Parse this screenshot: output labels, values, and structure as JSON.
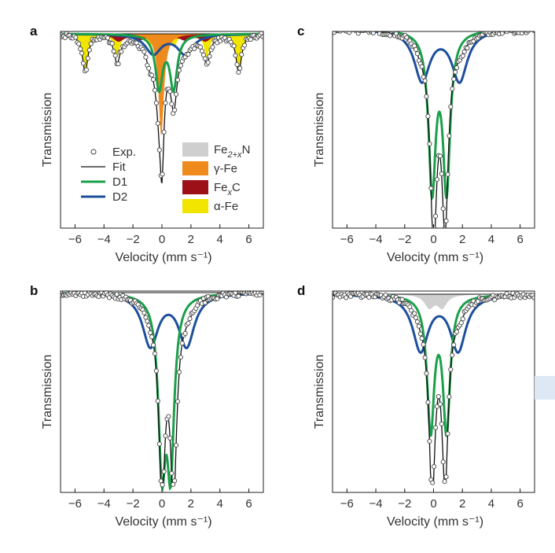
{
  "axes": {
    "xlabel": "Velocity (mm s⁻¹)",
    "ylabel": "Transmission",
    "xlim": [
      -7,
      7
    ],
    "xticks": [
      -6,
      -4,
      -2,
      0,
      2,
      4,
      6
    ]
  },
  "colors": {
    "D1": "#1aa04a",
    "D2": "#1d4f9c",
    "fit": "#111111",
    "exp": "#444444",
    "Fe2N": "#cfcfcf",
    "gammaFe": "#ef8a1c",
    "FexC": "#9e1017",
    "alphaFe": "#f2e600"
  },
  "legend_lines": [
    {
      "key": "exp",
      "label": "Exp."
    },
    {
      "key": "fit",
      "label": "Fit"
    },
    {
      "key": "D1",
      "label": "D1"
    },
    {
      "key": "D2",
      "label": "D2"
    }
  ],
  "legend_areas": [
    {
      "key": "Fe2N",
      "label": "Fe",
      "sub": "2+x",
      "tail": "N"
    },
    {
      "key": "gammaFe",
      "label": "γ-Fe",
      "sub": "",
      "tail": ""
    },
    {
      "key": "FexC",
      "label": "Fe",
      "sub": "x",
      "tail": "C"
    },
    {
      "key": "alphaFe",
      "label": "α-Fe",
      "sub": "",
      "tail": ""
    }
  ],
  "chart_data": [
    {
      "panel": "a",
      "type": "line",
      "xlabel": "Velocity (mm s⁻¹)",
      "ylabel": "Transmission",
      "xlim": [
        -7,
        7
      ],
      "components": {
        "alphaFe": {
          "sextet_positions": [
            -5.3,
            -3.1,
            -0.85,
            0.85,
            3.1,
            5.3
          ],
          "relative_depth": [
            0.21,
            0.13,
            0.07,
            0.07,
            0.13,
            0.21
          ]
        },
        "FexC": {
          "sextet_positions": [
            -3.0,
            -1.6,
            -0.5,
            0.5,
            1.6,
            3.0
          ],
          "relative_depth": [
            0.04,
            0.03,
            0.02,
            0.02,
            0.03,
            0.04
          ]
        },
        "gammaFe": {
          "center": -0.05,
          "relative_depth": 0.57
        },
        "D1": {
          "centers": [
            -0.2,
            0.8
          ],
          "relative_depth": 0.3
        },
        "D2": {
          "centers": [
            -0.6,
            1.6
          ],
          "relative_depth": 0.11
        }
      },
      "fit_min": {
        "x": 0.0,
        "relative_depth": 1.0
      }
    },
    {
      "panel": "b",
      "type": "line",
      "xlabel": "Velocity (mm s⁻¹)",
      "ylabel": "Transmission",
      "xlim": [
        -7,
        7
      ],
      "components": {
        "D1": {
          "centers": [
            0.0,
            0.6
          ],
          "relative_depth": [
            0.87,
            0.87
          ]
        },
        "D2": {
          "centers": [
            -0.8,
            1.7
          ],
          "relative_depth": 0.28
        }
      },
      "fit_min": [
        {
          "x": 0.0,
          "relative_depth": 0.97
        },
        {
          "x": 0.8,
          "relative_depth": 1.0
        }
      ]
    },
    {
      "panel": "c",
      "type": "line",
      "xlabel": "Velocity (mm s⁻¹)",
      "ylabel": "Transmission",
      "xlim": [
        -7,
        7
      ],
      "components": {
        "D1": {
          "centers": [
            -0.1,
            0.9
          ],
          "relative_depth": 0.8
        },
        "D2": {
          "centers": [
            -0.8,
            1.8
          ],
          "relative_depth": 0.26
        }
      },
      "fit_min": [
        {
          "x": 0.0,
          "relative_depth": 1.0
        },
        {
          "x": 0.8,
          "relative_depth": 0.93
        }
      ]
    },
    {
      "panel": "d",
      "type": "line",
      "xlabel": "Velocity (mm s⁻¹)",
      "ylabel": "Transmission",
      "xlim": [
        -7,
        7
      ],
      "components": {
        "Fe2N": {
          "centers": [
            -0.3,
            0.6
          ],
          "relative_depth": 0.07
        },
        "D1": {
          "centers": [
            -0.2,
            0.9
          ],
          "relative_depth": 0.72
        },
        "D2": {
          "centers": [
            -0.9,
            1.7
          ],
          "relative_depth": 0.3
        }
      },
      "fit_min": [
        {
          "x": -0.1,
          "relative_depth": 1.0
        },
        {
          "x": 0.8,
          "relative_depth": 0.94
        }
      ]
    }
  ]
}
